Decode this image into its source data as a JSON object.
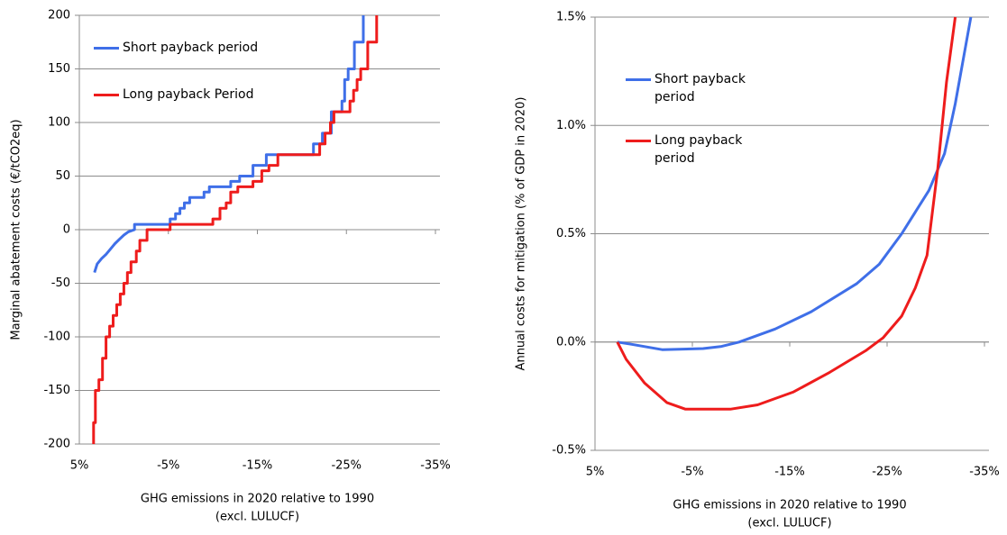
{
  "chart_data": [
    {
      "type": "line",
      "ylabel": "Marginal abatement costs (€/tCO2eq)",
      "xlabel": [
        "GHG emissions in 2020 relative to 1990",
        "(excl. LULUCF)"
      ],
      "xlim": [
        5,
        -35
      ],
      "xticks": [
        {
          "value": 5,
          "label": "5%"
        },
        {
          "value": -5,
          "label": "-5%"
        },
        {
          "value": -15,
          "label": "-15%"
        },
        {
          "value": -25,
          "label": "-25%"
        },
        {
          "value": -35,
          "label": "-35%"
        }
      ],
      "ylim": [
        -200,
        200
      ],
      "yticks": [
        -200,
        -150,
        -100,
        -50,
        0,
        50,
        100,
        150,
        200
      ],
      "grid": true,
      "series": [
        {
          "name": "Short payback period",
          "color": "#3f6fe8",
          "x": [
            3.3,
            3.0,
            2.5,
            2.0,
            1.5,
            1.0,
            0.5,
            0.0,
            -0.5,
            -1.2,
            -1.2,
            -5.2,
            -5.2,
            -5.8,
            -5.8,
            -6.3,
            -6.3,
            -6.8,
            -6.8,
            -7.4,
            -7.4,
            -9.0,
            -9.0,
            -9.6,
            -9.6,
            -12.0,
            -12.0,
            -13.0,
            -13.0,
            -14.5,
            -14.5,
            -16.0,
            -16.0,
            -21.3,
            -21.3,
            -22.3,
            -22.3,
            -23.3,
            -23.3,
            -24.5,
            -24.5,
            -24.8,
            -24.8,
            -25.2,
            -25.2,
            -25.9,
            -25.9,
            -26.9,
            -26.9
          ],
          "values": [
            -40,
            -32,
            -27,
            -23,
            -18,
            -13,
            -9,
            -5,
            -2,
            0,
            5,
            5,
            10,
            10,
            15,
            15,
            20,
            20,
            25,
            25,
            30,
            30,
            35,
            35,
            40,
            40,
            45,
            45,
            50,
            50,
            60,
            60,
            70,
            70,
            80,
            80,
            90,
            90,
            110,
            110,
            120,
            120,
            140,
            140,
            150,
            150,
            175,
            175,
            200
          ]
        },
        {
          "name": "Long payback Period",
          "color": "#ee1c1c",
          "x": [
            3.4,
            3.4,
            3.2,
            3.2,
            2.8,
            2.8,
            2.4,
            2.4,
            2.0,
            2.0,
            1.6,
            1.6,
            1.2,
            1.2,
            0.8,
            0.8,
            0.4,
            0.4,
            0.0,
            0.0,
            -0.4,
            -0.4,
            -0.8,
            -0.8,
            -1.4,
            -1.4,
            -1.8,
            -1.8,
            -2.6,
            -2.6,
            -5.2,
            -5.2,
            -10.0,
            -10.0,
            -10.8,
            -10.8,
            -11.5,
            -11.5,
            -12.0,
            -12.0,
            -12.8,
            -12.8,
            -14.5,
            -14.5,
            -15.5,
            -15.5,
            -16.3,
            -16.3,
            -17.3,
            -17.3,
            -22.0,
            -22.0,
            -22.6,
            -22.6,
            -23.2,
            -23.2,
            -23.6,
            -23.6,
            -25.4,
            -25.4,
            -25.8,
            -25.8,
            -26.2,
            -26.2,
            -26.6,
            -26.6,
            -27.4,
            -27.4,
            -28.4,
            -28.4
          ],
          "values": [
            -200,
            -180,
            -180,
            -150,
            -150,
            -140,
            -140,
            -120,
            -120,
            -100,
            -100,
            -90,
            -90,
            -80,
            -80,
            -70,
            -70,
            -60,
            -60,
            -50,
            -50,
            -40,
            -40,
            -30,
            -30,
            -20,
            -20,
            -10,
            -10,
            0,
            0,
            5,
            5,
            10,
            10,
            20,
            20,
            25,
            25,
            35,
            35,
            40,
            40,
            45,
            45,
            55,
            55,
            60,
            60,
            70,
            70,
            80,
            80,
            90,
            90,
            100,
            100,
            110,
            110,
            120,
            120,
            130,
            130,
            140,
            140,
            150,
            150,
            175,
            175,
            200
          ]
        }
      ]
    },
    {
      "type": "line",
      "ylabel": "Annual costs for mitigation (% of GDP in 2020)",
      "xlabel": [
        "GHG emissions in 2020 relative to 1990",
        "(excl. LULUCF)"
      ],
      "xlim": [
        5,
        -35
      ],
      "xticks": [
        {
          "value": 5,
          "label": "5%"
        },
        {
          "value": -5,
          "label": "-5%"
        },
        {
          "value": -15,
          "label": "-15%"
        },
        {
          "value": -25,
          "label": "-25%"
        },
        {
          "value": -35,
          "label": "-35%"
        }
      ],
      "ylim": [
        -0.5,
        1.5
      ],
      "yticks": [
        {
          "value": -0.5,
          "label": "-0.5%"
        },
        {
          "value": 0,
          "label": "0.0%"
        },
        {
          "value": 0.5,
          "label": "0.5%"
        },
        {
          "value": 1,
          "label": "1.0%"
        },
        {
          "value": 1.5,
          "label": "1.5%"
        }
      ],
      "grid": true,
      "series": [
        {
          "name": "Short payback period",
          "color": "#3f6fe8",
          "x": [
            2.7,
            1.3,
            -1.9,
            -6.1,
            -8.0,
            -9.8,
            -13.5,
            -17.2,
            -21.9,
            -24.2,
            -26.5,
            -29.3,
            -30.9,
            -32.0,
            -33.0,
            -33.6
          ],
          "values": [
            0,
            -0.01,
            -0.035,
            -0.03,
            -0.02,
            0.0,
            0.06,
            0.14,
            0.27,
            0.36,
            0.5,
            0.7,
            0.87,
            1.1,
            1.35,
            1.5
          ]
        },
        {
          "name": "Long payback period",
          "color": "#ee1c1c",
          "x": [
            2.7,
            1.8,
            -0.1,
            -2.4,
            -4.3,
            -8.9,
            -11.7,
            -15.4,
            -19.1,
            -22.8,
            -24.6,
            -26.5,
            -27.9,
            -29.1,
            -30.2,
            -31.1,
            -32.0
          ],
          "values": [
            0,
            -0.08,
            -0.19,
            -0.28,
            -0.31,
            -0.31,
            -0.29,
            -0.23,
            -0.14,
            -0.04,
            0.02,
            0.12,
            0.25,
            0.4,
            0.8,
            1.2,
            1.5
          ]
        }
      ]
    }
  ]
}
